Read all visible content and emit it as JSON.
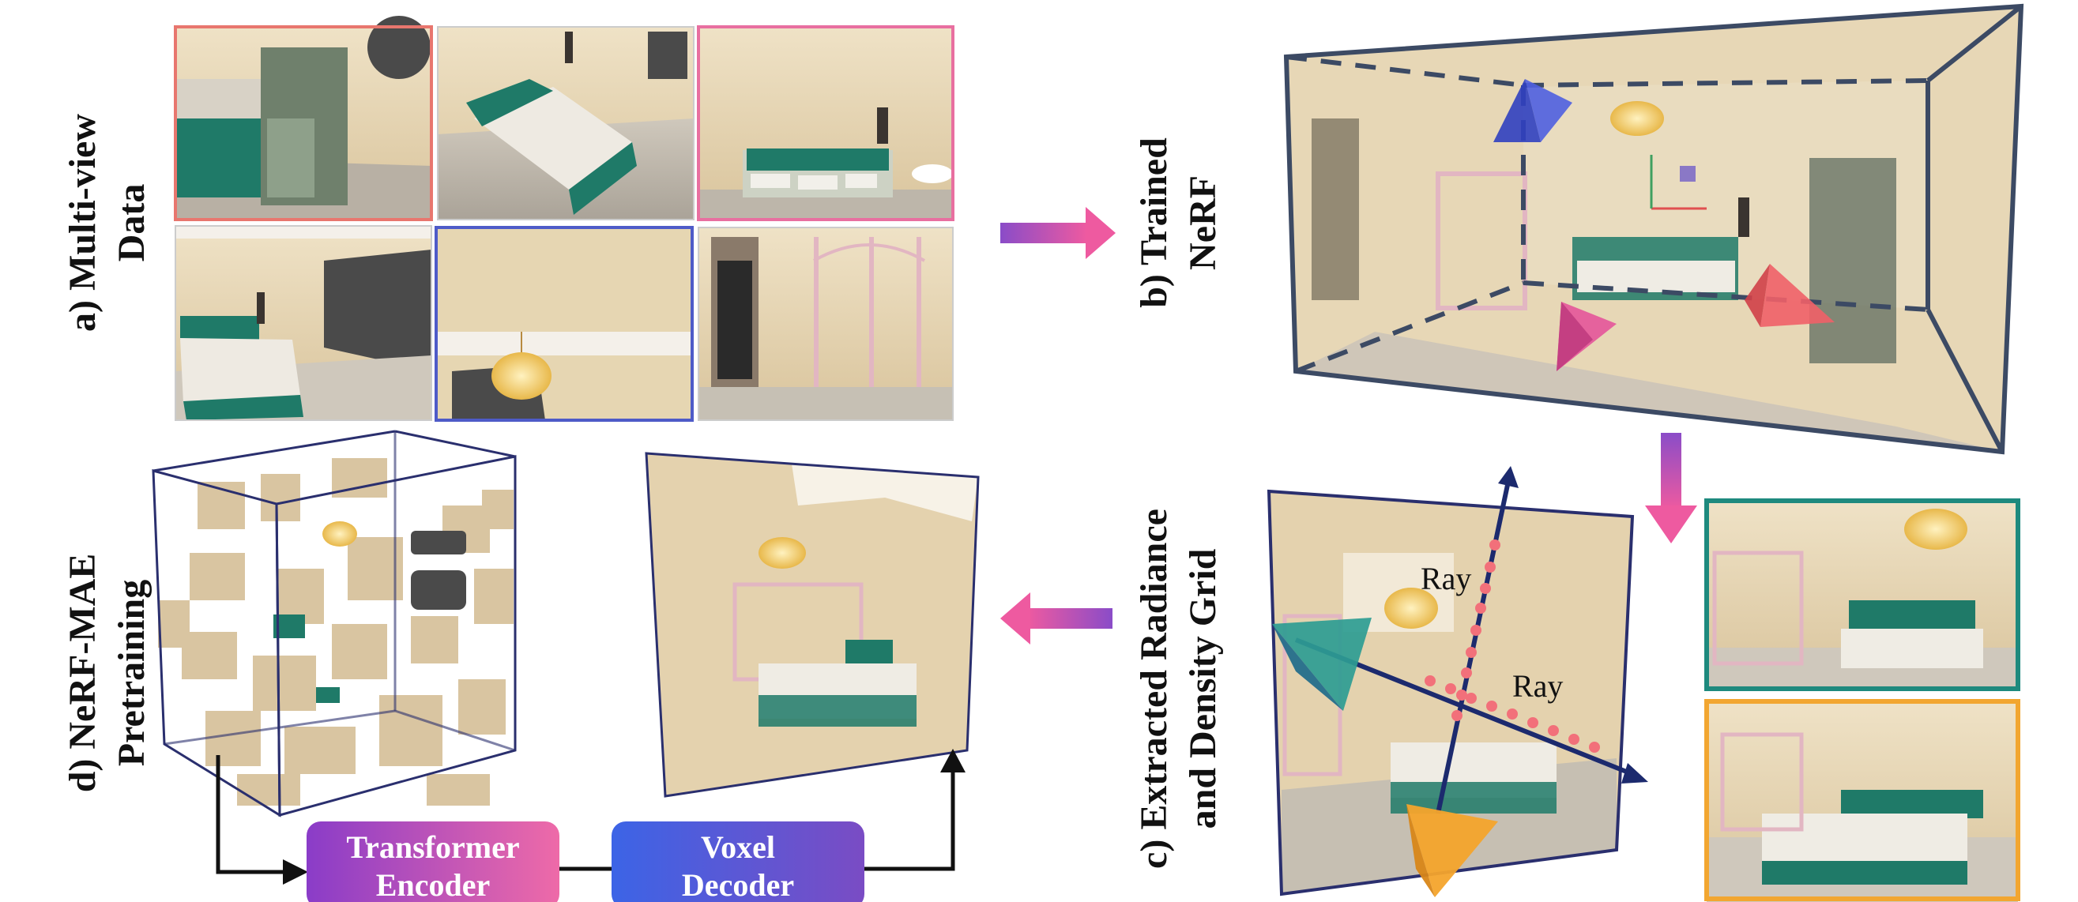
{
  "labels": {
    "a_line1": "a) Multi-view",
    "a_line2": "Data",
    "b_line1": "b) Trained",
    "b_line2": "NeRF",
    "c_line1": "c) Extracted Radiance",
    "c_line2": "and Density Grid",
    "d_line1": "d) NeRF-MAE",
    "d_line2": "Pretraining"
  },
  "encoder": {
    "line1": "Transformer",
    "line2": "Encoder"
  },
  "decoder": {
    "line1": "Voxel",
    "line2": "Decoder"
  },
  "ray_labels": {
    "ray1": "Ray",
    "ray2": "Ray"
  },
  "colors": {
    "view1_border": "#e8766e",
    "view3_border": "#e86fa0",
    "view5_border": "#4e5bc8",
    "crop_top_border": "#1e8a7e",
    "crop_bottom_border": "#f2a630",
    "cube_edge": "#2a2f6e",
    "nerf_frame": "#3c4a64",
    "camera_blue": "#4f5fe0",
    "camera_pink": "#e4559a",
    "camera_red": "#f06068",
    "camera_teal": "#2e9c92",
    "camera_orange": "#f4a42c",
    "ray_dots": "#f2707a",
    "ray_line": "#1c2a6e",
    "encoder_gradient": [
      "#8a3cc8",
      "#ee6aa8"
    ],
    "decoder_gradient": [
      "#3c64e6",
      "#7a4cc4"
    ],
    "arrow_gradient": [
      "#8a4cc8",
      "#ee5aa0"
    ],
    "bed_green": "#1f7a68",
    "wall_beige": "#e8d6b4",
    "floor_grey": "#c8c2b8"
  },
  "icons": {
    "flow_arrow_right": "arrow-right-icon",
    "flow_arrow_down": "arrow-down-icon",
    "flow_arrow_left": "arrow-left-icon",
    "camera": "camera-pyramid-icon"
  }
}
